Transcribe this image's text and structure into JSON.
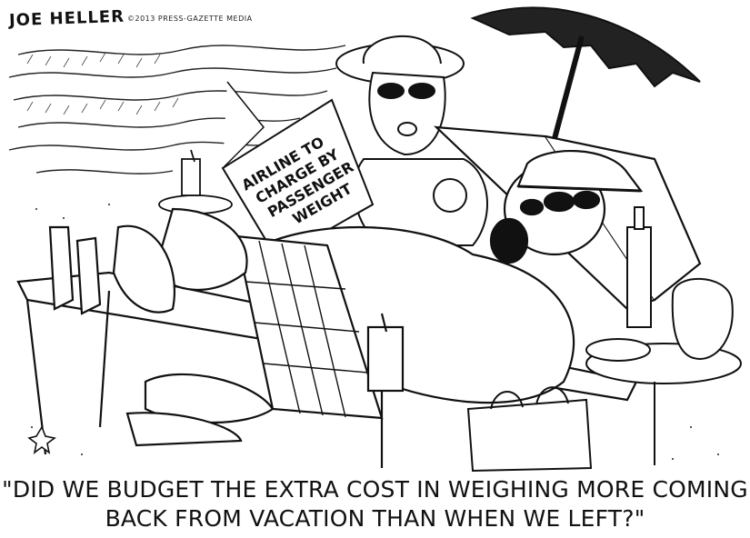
{
  "cartoon": {
    "signature": "JOE HELLER",
    "credit": "©2013 PRESS-GAZETTE MEDIA",
    "newspaper_headline": [
      "AIRLINE TO",
      "CHARGE BY",
      "PASSENGER",
      "WEIGHT"
    ],
    "caption_line1": "\"DID WE BUDGET THE EXTRA COST IN WEIGHING MORE COMING",
    "caption_line2": "BACK FROM VACATION THAN WHEN WE LEFT?\""
  }
}
